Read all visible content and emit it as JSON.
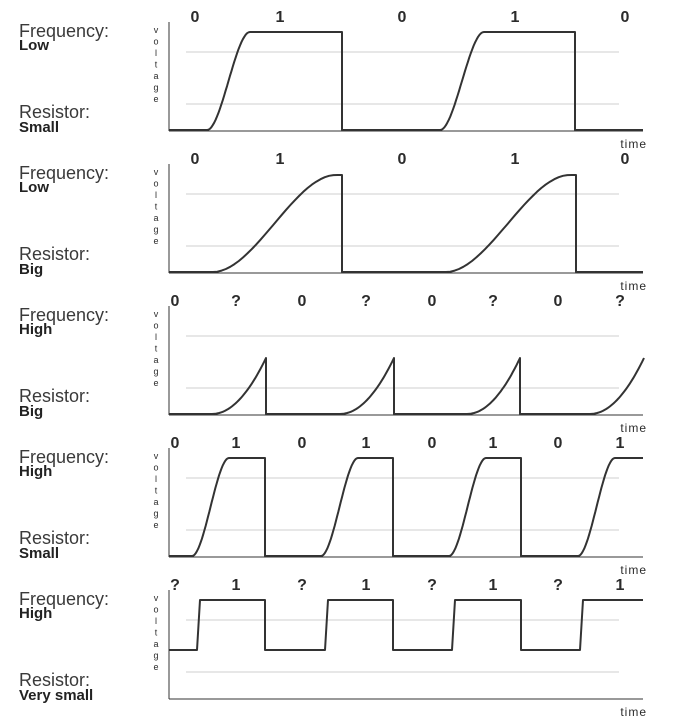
{
  "axis": {
    "y_label_letters": [
      "v",
      "o",
      "l",
      "t",
      "a",
      "g",
      "e"
    ],
    "x_label": "time"
  },
  "panels": [
    {
      "freq_label": "Frequency:",
      "freq_value": "Low",
      "res_label": "Resistor:",
      "res_value": "Small",
      "bits": [
        "0",
        "1",
        "0",
        "1",
        "0"
      ],
      "waveform": "slow-rise-small"
    },
    {
      "freq_label": "Frequency:",
      "freq_value": "Low",
      "res_label": "Resistor:",
      "res_value": "Big",
      "bits": [
        "0",
        "1",
        "0",
        "1",
        "0"
      ],
      "waveform": "slow-rise-big"
    },
    {
      "freq_label": "Frequency:",
      "freq_value": "High",
      "res_label": "Resistor:",
      "res_value": "Big",
      "bits": [
        "0",
        "?",
        "0",
        "?",
        "0",
        "?",
        "0",
        "?"
      ],
      "waveform": "fast-big"
    },
    {
      "freq_label": "Frequency:",
      "freq_value": "High",
      "res_label": "Resistor:",
      "res_value": "Small",
      "bits": [
        "0",
        "1",
        "0",
        "1",
        "0",
        "1",
        "0",
        "1"
      ],
      "waveform": "fast-small"
    },
    {
      "freq_label": "Frequency:",
      "freq_value": "High",
      "res_label": "Resistor:",
      "res_value": "Very small",
      "bits": [
        "?",
        "1",
        "?",
        "1",
        "?",
        "1",
        "?",
        "1"
      ],
      "waveform": "fast-very-small"
    }
  ]
}
